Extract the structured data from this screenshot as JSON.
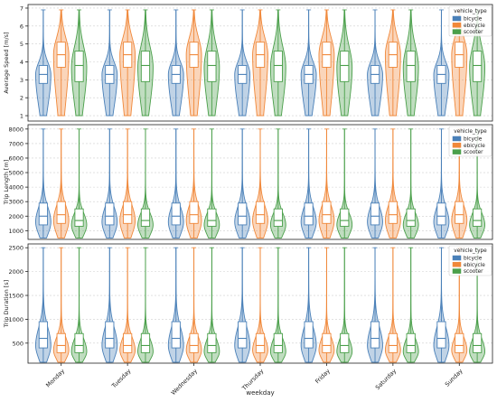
{
  "figure": {
    "xlabel": "weekday",
    "categories": [
      "Monday",
      "Tuesday",
      "Wednesday",
      "Thursday",
      "Friday",
      "Saturday",
      "Sunday"
    ],
    "series_colors": {
      "bicycle": "#4a80b8",
      "ebicycle": "#f0883a",
      "scooter": "#4a9f4a"
    },
    "legend_title": "vehicle_type",
    "legend_labels": [
      "bicycle",
      "ebicycle",
      "scooter"
    ]
  },
  "chart_data": [
    {
      "type": "violin",
      "ylabel": "Average Speed [m/s]",
      "ylim": [
        0.7,
        7.2
      ],
      "yticks": [
        1,
        2,
        3,
        4,
        5,
        6,
        7
      ],
      "grid": true,
      "legend": "top-right",
      "series": [
        {
          "name": "bicycle",
          "min": 1.0,
          "q1": 2.8,
          "median": 3.3,
          "q3": 3.8,
          "max": 6.9,
          "mode": 3.3
        },
        {
          "name": "ebicycle",
          "min": 1.0,
          "q1": 3.7,
          "median": 4.4,
          "q3": 5.1,
          "max": 6.9,
          "mode": 4.4
        },
        {
          "name": "scooter",
          "min": 1.0,
          "q1": 2.9,
          "median": 3.8,
          "q3": 4.6,
          "max": 6.9,
          "mode": 3.7
        }
      ]
    },
    {
      "type": "violin",
      "ylabel": "Trip Length [m]",
      "ylim": [
        400,
        8300
      ],
      "yticks": [
        1000,
        2000,
        3000,
        4000,
        5000,
        6000,
        7000,
        8000
      ],
      "grid": true,
      "legend": "top-right",
      "series": [
        {
          "name": "bicycle",
          "min": 500,
          "q1": 1400,
          "median": 2000,
          "q3": 2900,
          "max": 8000,
          "mode": 1600
        },
        {
          "name": "ebicycle",
          "min": 500,
          "q1": 1500,
          "median": 2100,
          "q3": 3000,
          "max": 8000,
          "mode": 1700
        },
        {
          "name": "scooter",
          "min": 500,
          "q1": 1300,
          "median": 1700,
          "q3": 2500,
          "max": 8000,
          "mode": 1400
        }
      ]
    },
    {
      "type": "violin",
      "ylabel": "Trip Duration [s]",
      "ylim": [
        80,
        2580
      ],
      "yticks": [
        500,
        1000,
        1500,
        2000,
        2500
      ],
      "grid": true,
      "legend": "top-right",
      "series": [
        {
          "name": "bicycle",
          "min": 100,
          "q1": 400,
          "median": 600,
          "q3": 950,
          "max": 2500,
          "mode": 450
        },
        {
          "name": "ebicycle",
          "min": 100,
          "q1": 300,
          "median": 450,
          "q3": 700,
          "max": 2500,
          "mode": 350
        },
        {
          "name": "scooter",
          "min": 100,
          "q1": 300,
          "median": 450,
          "q3": 700,
          "max": 2500,
          "mode": 320
        }
      ]
    }
  ]
}
